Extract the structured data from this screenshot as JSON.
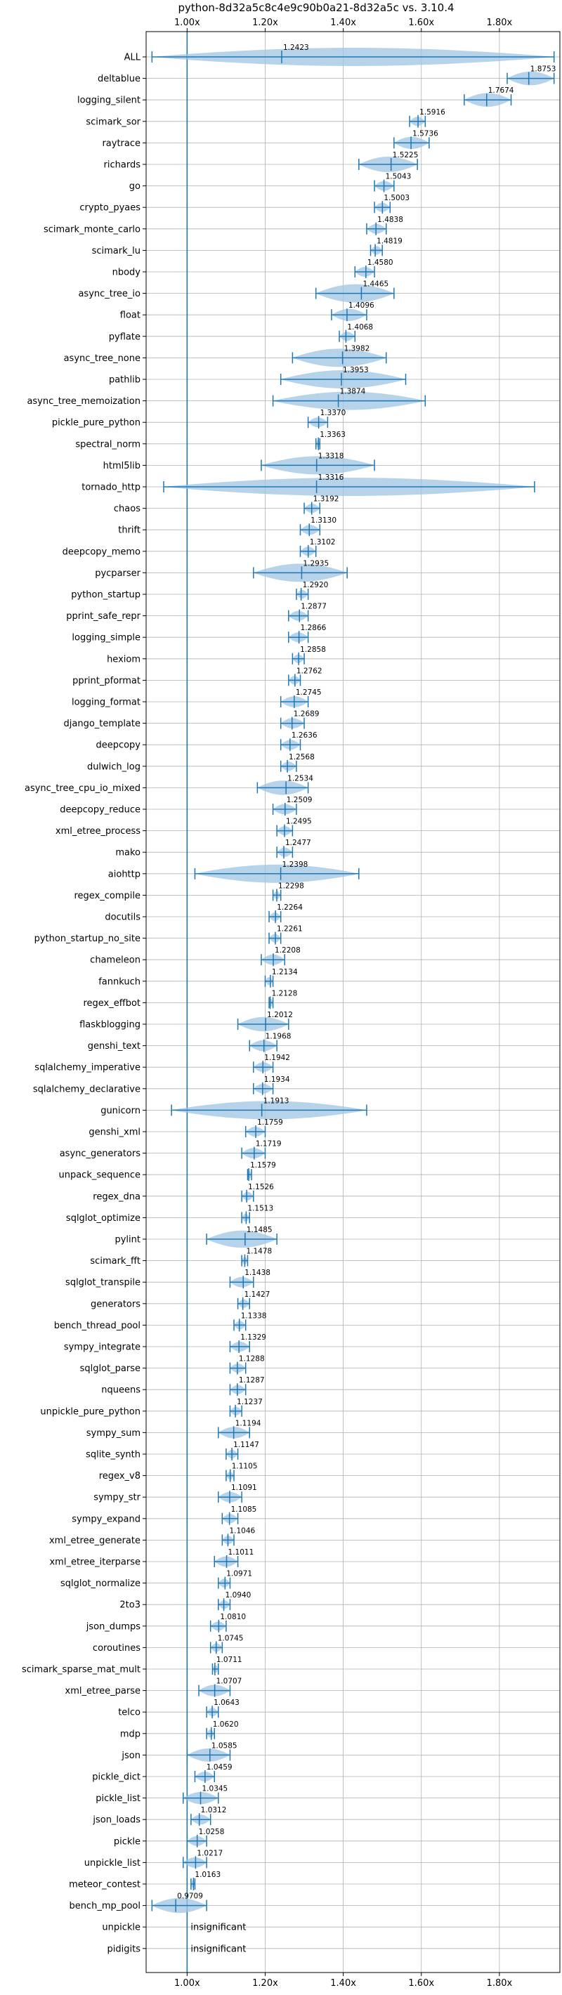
{
  "chart_data": {
    "type": "violin",
    "title": "python-8d32a5c8c4e9c90b0a21-8d32a5c vs. 3.10.4",
    "xlabel": "",
    "ylabel": "",
    "xlim": [
      0.895,
      1.955
    ],
    "x_ticks": [
      1.0,
      1.2,
      1.4,
      1.6,
      1.8
    ],
    "x_tick_labels": [
      "1.00x",
      "1.20x",
      "1.40x",
      "1.60x",
      "1.80x"
    ],
    "grid": true,
    "baseline": 1.0,
    "benchmarks": [
      {
        "name": "ALL",
        "value": 1.2423,
        "min": 0.91,
        "max": 1.94
      },
      {
        "name": "deltablue",
        "value": 1.8753,
        "min": 1.82,
        "max": 1.94
      },
      {
        "name": "logging_silent",
        "value": 1.7674,
        "min": 1.71,
        "max": 1.83
      },
      {
        "name": "scimark_sor",
        "value": 1.5916,
        "min": 1.57,
        "max": 1.61
      },
      {
        "name": "raytrace",
        "value": 1.5736,
        "min": 1.53,
        "max": 1.62
      },
      {
        "name": "richards",
        "value": 1.5225,
        "min": 1.44,
        "max": 1.59
      },
      {
        "name": "go",
        "value": 1.5043,
        "min": 1.48,
        "max": 1.53
      },
      {
        "name": "crypto_pyaes",
        "value": 1.5003,
        "min": 1.48,
        "max": 1.52
      },
      {
        "name": "scimark_monte_carlo",
        "value": 1.4838,
        "min": 1.46,
        "max": 1.51
      },
      {
        "name": "scimark_lu",
        "value": 1.4819,
        "min": 1.47,
        "max": 1.5
      },
      {
        "name": "nbody",
        "value": 1.458,
        "min": 1.43,
        "max": 1.48
      },
      {
        "name": "async_tree_io",
        "value": 1.4465,
        "min": 1.33,
        "max": 1.53
      },
      {
        "name": "float",
        "value": 1.4096,
        "min": 1.37,
        "max": 1.46
      },
      {
        "name": "pyflate",
        "value": 1.4068,
        "min": 1.39,
        "max": 1.43
      },
      {
        "name": "async_tree_none",
        "value": 1.3982,
        "min": 1.27,
        "max": 1.51
      },
      {
        "name": "pathlib",
        "value": 1.3953,
        "min": 1.24,
        "max": 1.56
      },
      {
        "name": "async_tree_memoization",
        "value": 1.3874,
        "min": 1.22,
        "max": 1.61
      },
      {
        "name": "pickle_pure_python",
        "value": 1.337,
        "min": 1.31,
        "max": 1.36
      },
      {
        "name": "spectral_norm",
        "value": 1.3363,
        "min": 1.33,
        "max": 1.34
      },
      {
        "name": "html5lib",
        "value": 1.3318,
        "min": 1.19,
        "max": 1.48
      },
      {
        "name": "tornado_http",
        "value": 1.3316,
        "min": 0.94,
        "max": 1.89
      },
      {
        "name": "chaos",
        "value": 1.3192,
        "min": 1.3,
        "max": 1.34
      },
      {
        "name": "thrift",
        "value": 1.313,
        "min": 1.29,
        "max": 1.34
      },
      {
        "name": "deepcopy_memo",
        "value": 1.3102,
        "min": 1.29,
        "max": 1.33
      },
      {
        "name": "pycparser",
        "value": 1.2935,
        "min": 1.17,
        "max": 1.41
      },
      {
        "name": "python_startup",
        "value": 1.292,
        "min": 1.28,
        "max": 1.31
      },
      {
        "name": "pprint_safe_repr",
        "value": 1.2877,
        "min": 1.26,
        "max": 1.31
      },
      {
        "name": "logging_simple",
        "value": 1.2866,
        "min": 1.26,
        "max": 1.31
      },
      {
        "name": "hexiom",
        "value": 1.2858,
        "min": 1.27,
        "max": 1.3
      },
      {
        "name": "pprint_pformat",
        "value": 1.2762,
        "min": 1.26,
        "max": 1.29
      },
      {
        "name": "logging_format",
        "value": 1.2745,
        "min": 1.24,
        "max": 1.31
      },
      {
        "name": "django_template",
        "value": 1.2689,
        "min": 1.24,
        "max": 1.3
      },
      {
        "name": "deepcopy",
        "value": 1.2636,
        "min": 1.24,
        "max": 1.29
      },
      {
        "name": "dulwich_log",
        "value": 1.2568,
        "min": 1.24,
        "max": 1.28
      },
      {
        "name": "async_tree_cpu_io_mixed",
        "value": 1.2534,
        "min": 1.18,
        "max": 1.31
      },
      {
        "name": "deepcopy_reduce",
        "value": 1.2509,
        "min": 1.22,
        "max": 1.28
      },
      {
        "name": "xml_etree_process",
        "value": 1.2495,
        "min": 1.23,
        "max": 1.27
      },
      {
        "name": "mako",
        "value": 1.2477,
        "min": 1.23,
        "max": 1.27
      },
      {
        "name": "aiohttp",
        "value": 1.2398,
        "min": 1.02,
        "max": 1.44
      },
      {
        "name": "regex_compile",
        "value": 1.2298,
        "min": 1.22,
        "max": 1.24
      },
      {
        "name": "docutils",
        "value": 1.2264,
        "min": 1.21,
        "max": 1.24
      },
      {
        "name": "python_startup_no_site",
        "value": 1.2261,
        "min": 1.21,
        "max": 1.24
      },
      {
        "name": "chameleon",
        "value": 1.2208,
        "min": 1.19,
        "max": 1.25
      },
      {
        "name": "fannkuch",
        "value": 1.2134,
        "min": 1.2,
        "max": 1.22
      },
      {
        "name": "regex_effbot",
        "value": 1.2128,
        "min": 1.21,
        "max": 1.22
      },
      {
        "name": "flaskblogging",
        "value": 1.2012,
        "min": 1.13,
        "max": 1.26
      },
      {
        "name": "genshi_text",
        "value": 1.1968,
        "min": 1.16,
        "max": 1.23
      },
      {
        "name": "sqlalchemy_imperative",
        "value": 1.1942,
        "min": 1.17,
        "max": 1.22
      },
      {
        "name": "sqlalchemy_declarative",
        "value": 1.1934,
        "min": 1.17,
        "max": 1.22
      },
      {
        "name": "gunicorn",
        "value": 1.1913,
        "min": 0.96,
        "max": 1.46
      },
      {
        "name": "genshi_xml",
        "value": 1.1759,
        "min": 1.15,
        "max": 1.2
      },
      {
        "name": "async_generators",
        "value": 1.1719,
        "min": 1.14,
        "max": 1.2
      },
      {
        "name": "unpack_sequence",
        "value": 1.1579,
        "min": 1.155,
        "max": 1.165
      },
      {
        "name": "regex_dna",
        "value": 1.1526,
        "min": 1.14,
        "max": 1.17
      },
      {
        "name": "sqlglot_optimize",
        "value": 1.1513,
        "min": 1.14,
        "max": 1.16
      },
      {
        "name": "pylint",
        "value": 1.1485,
        "min": 1.05,
        "max": 1.23
      },
      {
        "name": "scimark_fft",
        "value": 1.1478,
        "min": 1.14,
        "max": 1.155
      },
      {
        "name": "sqlglot_transpile",
        "value": 1.1438,
        "min": 1.11,
        "max": 1.17
      },
      {
        "name": "generators",
        "value": 1.1427,
        "min": 1.13,
        "max": 1.16
      },
      {
        "name": "bench_thread_pool",
        "value": 1.1338,
        "min": 1.12,
        "max": 1.15
      },
      {
        "name": "sympy_integrate",
        "value": 1.1329,
        "min": 1.11,
        "max": 1.16
      },
      {
        "name": "sqlglot_parse",
        "value": 1.1288,
        "min": 1.11,
        "max": 1.15
      },
      {
        "name": "nqueens",
        "value": 1.1287,
        "min": 1.11,
        "max": 1.15
      },
      {
        "name": "unpickle_pure_python",
        "value": 1.1237,
        "min": 1.11,
        "max": 1.14
      },
      {
        "name": "sympy_sum",
        "value": 1.1194,
        "min": 1.08,
        "max": 1.16
      },
      {
        "name": "sqlite_synth",
        "value": 1.1147,
        "min": 1.1,
        "max": 1.13
      },
      {
        "name": "regex_v8",
        "value": 1.1105,
        "min": 1.1,
        "max": 1.12
      },
      {
        "name": "sympy_str",
        "value": 1.1091,
        "min": 1.08,
        "max": 1.14
      },
      {
        "name": "sympy_expand",
        "value": 1.1085,
        "min": 1.09,
        "max": 1.13
      },
      {
        "name": "xml_etree_generate",
        "value": 1.1046,
        "min": 1.09,
        "max": 1.12
      },
      {
        "name": "xml_etree_iterparse",
        "value": 1.1011,
        "min": 1.07,
        "max": 1.13
      },
      {
        "name": "sqlglot_normalize",
        "value": 1.0971,
        "min": 1.08,
        "max": 1.11
      },
      {
        "name": "2to3",
        "value": 1.094,
        "min": 1.08,
        "max": 1.11
      },
      {
        "name": "json_dumps",
        "value": 1.081,
        "min": 1.06,
        "max": 1.1
      },
      {
        "name": "coroutines",
        "value": 1.0745,
        "min": 1.06,
        "max": 1.09
      },
      {
        "name": "scimark_sparse_mat_mult",
        "value": 1.0711,
        "min": 1.065,
        "max": 1.08
      },
      {
        "name": "xml_etree_parse",
        "value": 1.0707,
        "min": 1.03,
        "max": 1.11
      },
      {
        "name": "telco",
        "value": 1.0643,
        "min": 1.05,
        "max": 1.08
      },
      {
        "name": "mdp",
        "value": 1.062,
        "min": 1.05,
        "max": 1.07
      },
      {
        "name": "json",
        "value": 1.0585,
        "min": 1.0,
        "max": 1.11
      },
      {
        "name": "pickle_dict",
        "value": 1.0459,
        "min": 1.02,
        "max": 1.07
      },
      {
        "name": "pickle_list",
        "value": 1.0345,
        "min": 0.99,
        "max": 1.08
      },
      {
        "name": "json_loads",
        "value": 1.0312,
        "min": 1.01,
        "max": 1.06
      },
      {
        "name": "pickle",
        "value": 1.0258,
        "min": 1.0,
        "max": 1.05
      },
      {
        "name": "unpickle_list",
        "value": 1.0217,
        "min": 0.99,
        "max": 1.05
      },
      {
        "name": "meteor_contest",
        "value": 1.0163,
        "min": 1.01,
        "max": 1.02
      },
      {
        "name": "bench_mp_pool",
        "value": 0.9709,
        "min": 0.91,
        "max": 1.05
      },
      {
        "name": "unpickle",
        "value": null,
        "note": "insignificant"
      },
      {
        "name": "pidigits",
        "value": null,
        "note": "insignificant"
      }
    ]
  }
}
